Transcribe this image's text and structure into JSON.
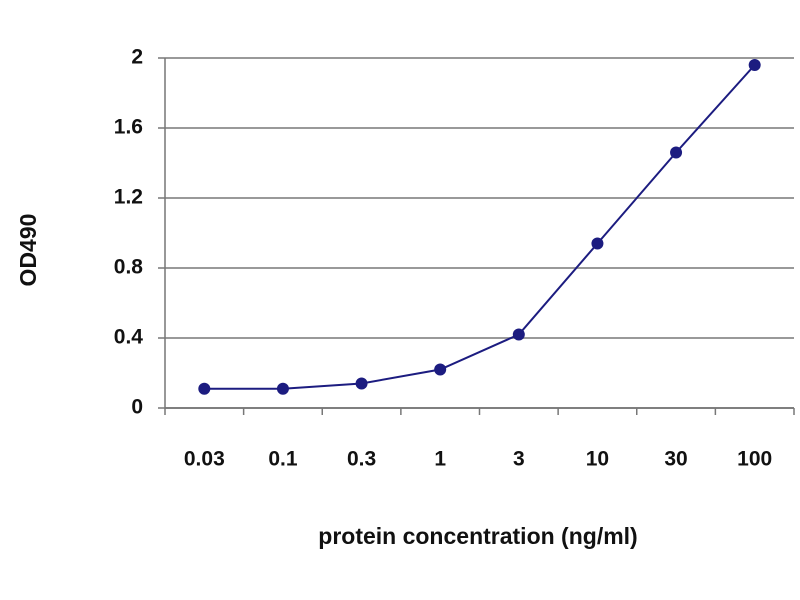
{
  "chart_data": {
    "type": "line",
    "x_label": "protein concentration (ng/ml)",
    "y_label": "OD490",
    "categories": [
      "0.03",
      "0.1",
      "0.3",
      "1",
      "3",
      "10",
      "30",
      "100"
    ],
    "series": [
      {
        "name": "OD490",
        "color": "#1c1c80",
        "values": [
          0.11,
          0.11,
          0.14,
          0.22,
          0.42,
          0.94,
          1.46,
          1.96
        ]
      }
    ],
    "ylim": [
      0,
      2
    ],
    "yticks": [
      0,
      0.4,
      0.8,
      1.2,
      1.6,
      2
    ],
    "grid": true
  }
}
